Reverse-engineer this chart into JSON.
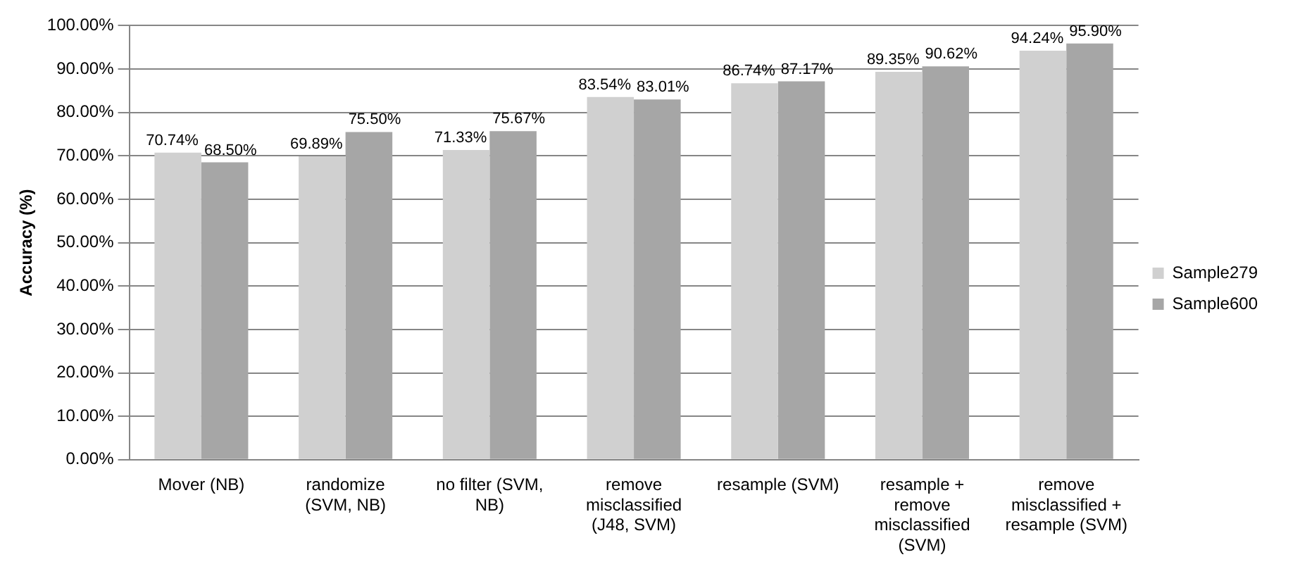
{
  "chart_data": {
    "type": "bar",
    "categories": [
      "Mover (NB)",
      "randomize (SVM, NB)",
      "no filter (SVM, NB)",
      "remove misclassified (J48, SVM)",
      "resample (SVM)",
      "resample + remove misclassified (SVM)",
      "remove misclassified + resample (SVM)"
    ],
    "series": [
      {
        "name": "Sample279",
        "color": "#d0d0d0",
        "values": [
          70.74,
          69.89,
          71.33,
          83.54,
          86.74,
          89.35,
          94.24
        ],
        "value_labels": [
          "70.74%",
          "69.89%",
          "71.33%",
          "83.54%",
          "86.74%",
          "89.35%",
          "94.24%"
        ]
      },
      {
        "name": "Sample600",
        "color": "#a6a6a6",
        "values": [
          68.5,
          75.5,
          75.67,
          83.01,
          87.17,
          90.62,
          95.9
        ],
        "value_labels": [
          "68.50%",
          "75.50%",
          "75.67%",
          "83.01%",
          "87.17%",
          "90.62%",
          "95.90%"
        ]
      }
    ],
    "ylabel": "Accuracy (%)",
    "ylim": [
      0,
      100
    ],
    "yticks": [
      {
        "value": 0,
        "label": "0.00%"
      },
      {
        "value": 10,
        "label": "10.00%"
      },
      {
        "value": 20,
        "label": "20.00%"
      },
      {
        "value": 30,
        "label": "30.00%"
      },
      {
        "value": 40,
        "label": "40.00%"
      },
      {
        "value": 50,
        "label": "50.00%"
      },
      {
        "value": 60,
        "label": "60.00%"
      },
      {
        "value": 70,
        "label": "70.00%"
      },
      {
        "value": 80,
        "label": "80.00%"
      },
      {
        "value": 90,
        "label": "90.00%"
      },
      {
        "value": 100,
        "label": "100.00%"
      }
    ],
    "grid": "y",
    "legend": "right"
  }
}
